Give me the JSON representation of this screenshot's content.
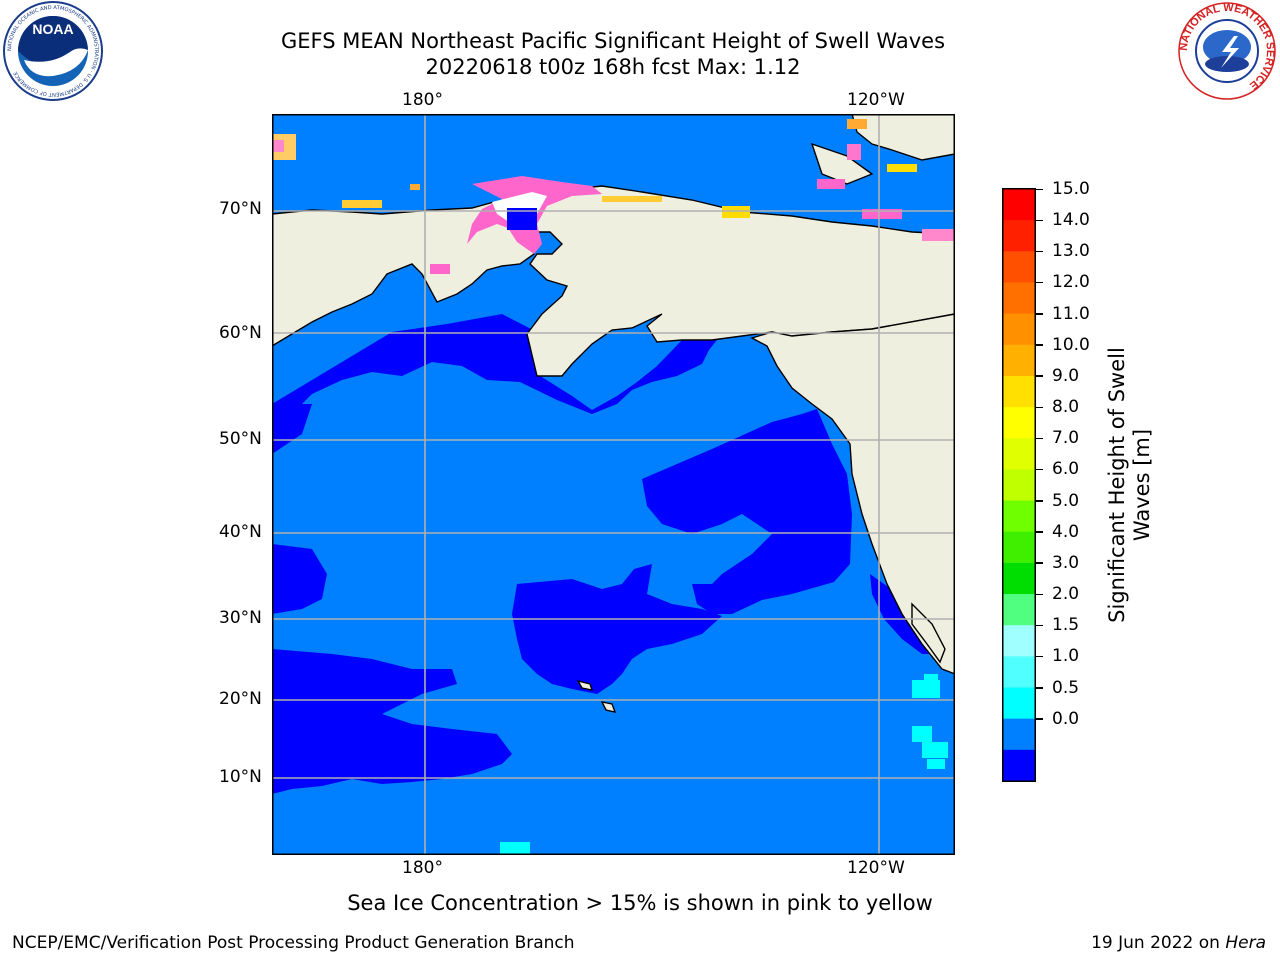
{
  "header": {
    "title_line1": "GEFS MEAN Northeast Pacific Significant Height of Swell Waves",
    "title_line2": "20220618 t00z 168h fcst   Max: 1.12"
  },
  "logos": {
    "left": "NOAA",
    "left_ring": "NATIONAL OCEANIC AND ATMOSPHERIC ADMINISTRATION · U.S. DEPARTMENT OF COMMERCE",
    "right_ring": "NATIONAL WEATHER SERVICE"
  },
  "map": {
    "lon_labels_top": [
      "180°",
      "120°W"
    ],
    "lon_labels_bottom": [
      "180°",
      "120°W"
    ],
    "lat_labels": [
      "70°N",
      "60°N",
      "50°N",
      "40°N",
      "30°N",
      "20°N",
      "10°N"
    ],
    "colors": {
      "land": "#efefdf",
      "swell_0_05": "#0000ff",
      "swell_05_10": "#0080ff",
      "swell_10_15": "#00ffff",
      "ice_pink": "#ff66cc",
      "ice_yellow": "#ffdd00",
      "grid": "#b0b0b0"
    }
  },
  "colorbar": {
    "label_line1": "Significant Height of Swell",
    "label_line2": "Waves [m]",
    "ticks": [
      "15.0",
      "14.0",
      "13.0",
      "12.0",
      "11.0",
      "10.0",
      "9.0",
      "8.0",
      "7.0",
      "6.0",
      "5.0",
      "4.0",
      "3.0",
      "2.0",
      "1.5",
      "1.0",
      "0.5",
      "0.0"
    ],
    "colors_top_to_bottom": [
      "#ff0000",
      "#ff2000",
      "#ff5000",
      "#ff7000",
      "#ff9000",
      "#ffb000",
      "#ffe000",
      "#ffff00",
      "#e0ff00",
      "#c0ff00",
      "#70ff00",
      "#40ee00",
      "#00dd00",
      "#50ff80",
      "#a0ffff",
      "#50ffff",
      "#00ffff",
      "#0080ff",
      "#0000ff"
    ]
  },
  "footer": {
    "note": "Sea Ice Concentration > 15% is shown in pink to yellow",
    "left": "NCEP/EMC/Verification Post Processing Product Generation Branch",
    "right_prefix": "19 Jun 2022 on ",
    "right_host": "Hera"
  }
}
